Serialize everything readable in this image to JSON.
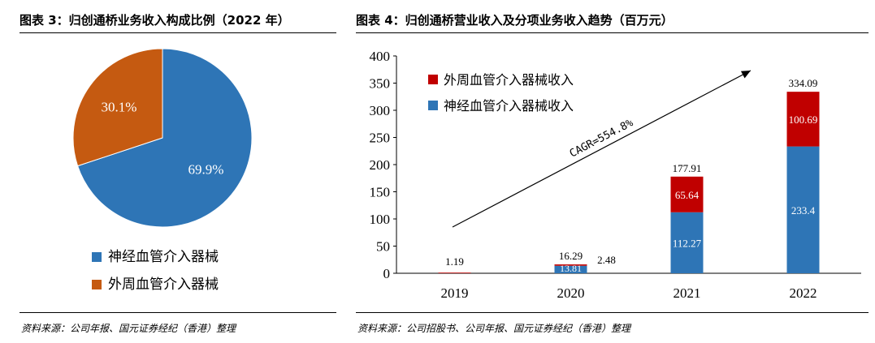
{
  "left_panel": {
    "title": "图表 3：归创通桥业务收入构成比例（2022 年）",
    "source": "资料来源：公司年报、国元证券经纪（香港）整理"
  },
  "right_panel": {
    "title": "图表 4：归创通桥营业收入及分项业务收入趋势（百万元）",
    "source": "资料来源：公司招股书、公司年报、国元证券经纪（香港）整理",
    "annotation": "CAGR=554.8%"
  },
  "colors": {
    "blue": "#2E75B6",
    "orange": "#C55A11",
    "red": "#C00000"
  },
  "chart_data": [
    {
      "type": "pie",
      "slices": [
        {
          "name": "神经血管介入器械",
          "value": 69.9,
          "label": "69.9%",
          "color": "#2E75B6"
        },
        {
          "name": "外周血管介入器械",
          "value": 30.1,
          "label": "30.1%",
          "color": "#C55A11"
        }
      ],
      "legend_position": "bottom"
    },
    {
      "type": "bar",
      "stacked": true,
      "categories": [
        "2019",
        "2020",
        "2021",
        "2022"
      ],
      "series": [
        {
          "name": "神经血管介入器械收入",
          "values": [
            null,
            13.81,
            112.27,
            233.4
          ],
          "labels": [
            "",
            "13.81",
            "112.27",
            "233.4"
          ],
          "color": "#2E75B6"
        },
        {
          "name": "外周血管介入器械收入",
          "values": [
            1.19,
            2.48,
            65.64,
            100.69
          ],
          "labels": [
            "",
            "2.48",
            "65.64",
            "100.69"
          ],
          "color": "#C00000"
        }
      ],
      "totals": [
        1.19,
        16.29,
        177.91,
        334.09
      ],
      "total_labels": [
        "1.19",
        "16.29",
        "177.91",
        "334.09"
      ],
      "ylim": [
        0,
        400
      ],
      "yticks": [
        0,
        50,
        100,
        150,
        200,
        250,
        300,
        350,
        400
      ],
      "legend_position": "top-left",
      "grid": false
    }
  ]
}
